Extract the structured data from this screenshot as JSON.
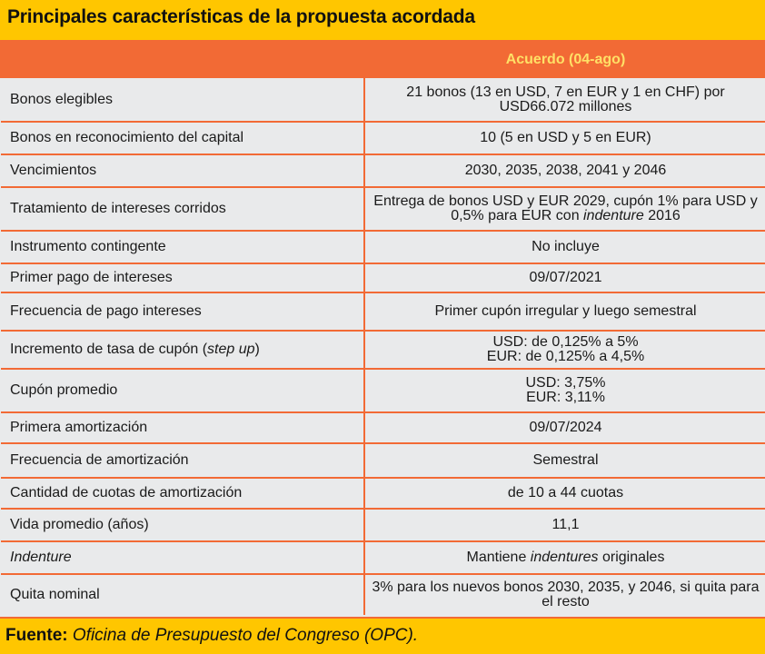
{
  "title": "Principales características de la propuesta acordada",
  "table": {
    "header": [
      "",
      "Acuerdo (04-ago)"
    ],
    "rows": [
      {
        "label": "Bonos elegibles",
        "value": "21 bonos (13 en USD, 7 en EUR y 1 en CHF) por USD66.072 millones"
      },
      {
        "label": "Bonos en reconocimiento del capital",
        "value": "10 (5 en USD y 5 en EUR)"
      },
      {
        "label": "Vencimientos",
        "value": "2030, 2035, 2038, 2041 y 2046"
      },
      {
        "label": "Tratamiento de intereses corridos",
        "value_a": "Entrega de bonos USD y EUR 2029, cupón 1% para USD y 0,5% para EUR con ",
        "value_em": "indenture",
        "value_b": " 2016"
      },
      {
        "label": "Instrumento contingente",
        "value": "No incluye"
      },
      {
        "label": "Primer pago de intereses",
        "value": "09/07/2021"
      },
      {
        "label": "Frecuencia de pago intereses",
        "value": "Primer cupón irregular y luego semestral"
      },
      {
        "label_a": "Incremento de tasa de cupón (",
        "label_em": "step up",
        "label_b": ")",
        "value_l1": "USD: de 0,125% a 5%",
        "value_l2": "EUR: de 0,125%  a 4,5%"
      },
      {
        "label": "Cupón promedio",
        "value_l1": "USD: 3,75%",
        "value_l2": "EUR: 3,11%"
      },
      {
        "label": "Primera amortización",
        "value": "09/07/2024"
      },
      {
        "label": "Frecuencia de amortización",
        "value": "Semestral"
      },
      {
        "label": "Cantidad de cuotas de amortización",
        "value": "de 10 a 44 cuotas"
      },
      {
        "label": "Vida promedio (años)",
        "value": "11,1"
      },
      {
        "label_em": "Indenture",
        "value_a": "Mantiene ",
        "value_em": "indentures",
        "value_b": " originales"
      },
      {
        "label": "Quita nominal",
        "value": "3% para los nuevos bonos 2030, 2035, y 2046, si quita para el resto"
      }
    ]
  },
  "source": {
    "label": "Fuente:",
    "text": " Oficina de Presupuesto del Congreso (OPC)."
  }
}
